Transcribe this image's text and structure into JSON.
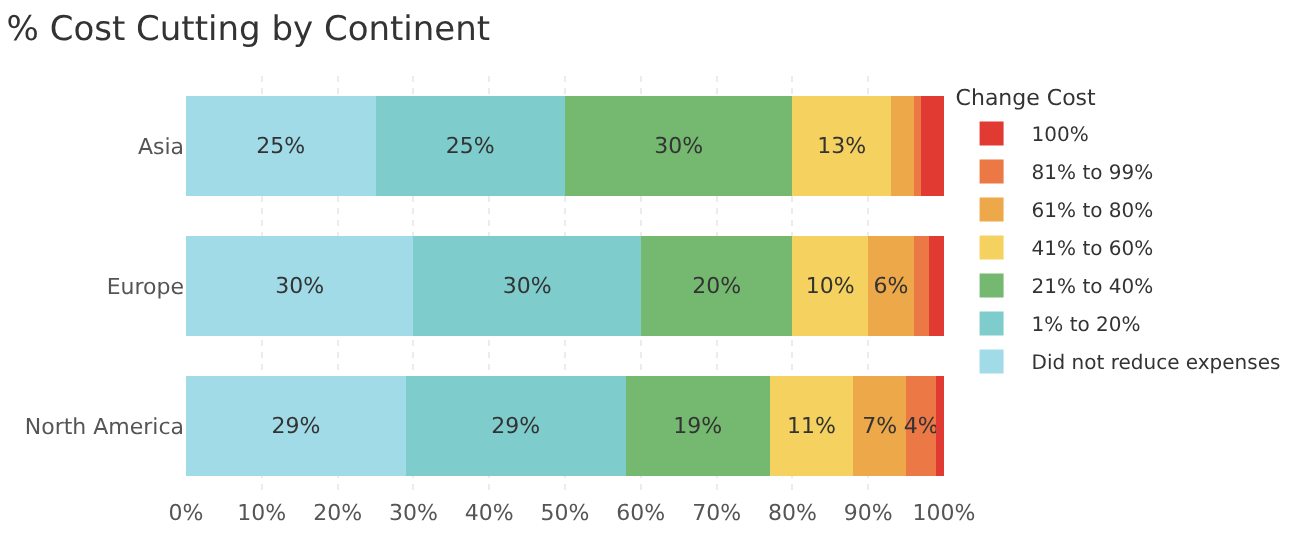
{
  "chart_data": {
    "type": "bar",
    "title": "% Cost Cutting by Continent",
    "orientation": "horizontal",
    "stacked": true,
    "legend_title": "Change Cost",
    "legend": "right",
    "grid": "x",
    "categories": [
      "Asia",
      "Europe",
      "North America"
    ],
    "xlim": [
      0,
      100
    ],
    "xticks": [
      {
        "value": 0,
        "label": "0%"
      },
      {
        "value": 10,
        "label": "10%"
      },
      {
        "value": 20,
        "label": "20%"
      },
      {
        "value": 30,
        "label": "30%"
      },
      {
        "value": 40,
        "label": "40%"
      },
      {
        "value": 50,
        "label": "50%"
      },
      {
        "value": 60,
        "label": "60%"
      },
      {
        "value": 70,
        "label": "70%"
      },
      {
        "value": 80,
        "label": "80%"
      },
      {
        "value": 90,
        "label": "90%"
      },
      {
        "value": 100,
        "label": "100%"
      }
    ],
    "series": [
      {
        "name": "Did not reduce expenses",
        "color": "#a1dbe8",
        "values": [
          25,
          30,
          29
        ],
        "value_labels": [
          "25%",
          "30%",
          "29%"
        ]
      },
      {
        "name": "1% to 20%",
        "color": "#7ecdcc",
        "values": [
          25,
          30,
          29
        ],
        "value_labels": [
          "25%",
          "30%",
          "29%"
        ]
      },
      {
        "name": "21% to 40%",
        "color": "#74b96f",
        "values": [
          30,
          20,
          19
        ],
        "value_labels": [
          "30%",
          "20%",
          "19%"
        ]
      },
      {
        "name": "41% to 60%",
        "color": "#f5d25f",
        "values": [
          13,
          10,
          11
        ],
        "value_labels": [
          "13%",
          "10%",
          "11%"
        ]
      },
      {
        "name": "61% to 80%",
        "color": "#eda84a",
        "values": [
          3,
          6,
          7
        ],
        "value_labels": [
          null,
          "6%",
          "7%"
        ]
      },
      {
        "name": "81% to 99%",
        "color": "#eb7845",
        "values": [
          1,
          2,
          4
        ],
        "value_labels": [
          null,
          null,
          "4%"
        ]
      },
      {
        "name": "100%",
        "color": "#e03a33",
        "values": [
          3,
          2,
          1
        ],
        "value_labels": [
          null,
          null,
          null
        ]
      }
    ]
  }
}
